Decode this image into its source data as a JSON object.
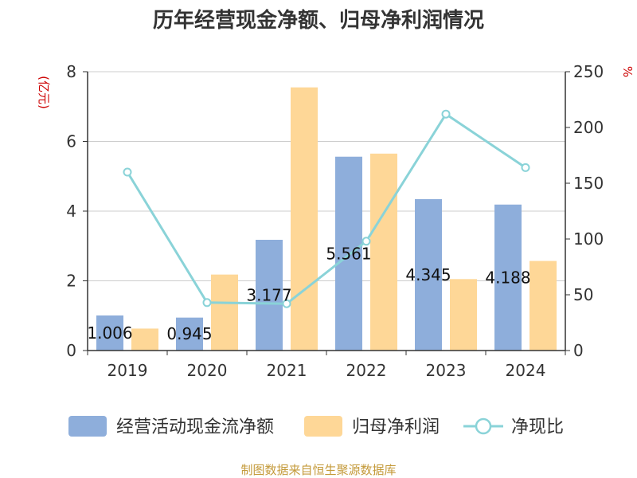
{
  "chart_data": {
    "type": "bar",
    "title": "历年经营现金净额、归母净利润情况",
    "categories": [
      "2019",
      "2020",
      "2021",
      "2022",
      "2023",
      "2024"
    ],
    "series": [
      {
        "name": "经营活动现金流净额",
        "type": "bar",
        "axis": "left",
        "color": "#8eaedb",
        "values": [
          1.006,
          0.945,
          3.177,
          5.561,
          4.345,
          4.188
        ],
        "labels": [
          "1.006",
          "0.945",
          "3.177",
          "5.561",
          "4.345",
          "4.188"
        ]
      },
      {
        "name": "归母净利润",
        "type": "bar",
        "axis": "left",
        "color": "#fed797",
        "values": [
          0.63,
          2.18,
          7.55,
          5.65,
          2.05,
          2.57
        ]
      },
      {
        "name": "净现比",
        "type": "line",
        "axis": "right",
        "color": "#8ad3d8",
        "values": [
          160,
          43,
          42,
          98,
          212,
          164
        ]
      }
    ],
    "y_left": {
      "unit": "(亿元)",
      "ylim": [
        0,
        8
      ],
      "ticks": [
        "0",
        "2",
        "4",
        "6",
        "8"
      ]
    },
    "y_right": {
      "unit": "%",
      "ylim": [
        0,
        250
      ],
      "ticks": [
        "0",
        "50",
        "100",
        "150",
        "200",
        "250"
      ]
    },
    "grid": true,
    "legend": "bottom"
  },
  "footer": {
    "source": "制图数据来自恒生聚源数据库"
  },
  "colors": {
    "unit": "#cc0000",
    "source": "#c49a3a",
    "axis": "#333333",
    "grid": "#cccccc"
  }
}
